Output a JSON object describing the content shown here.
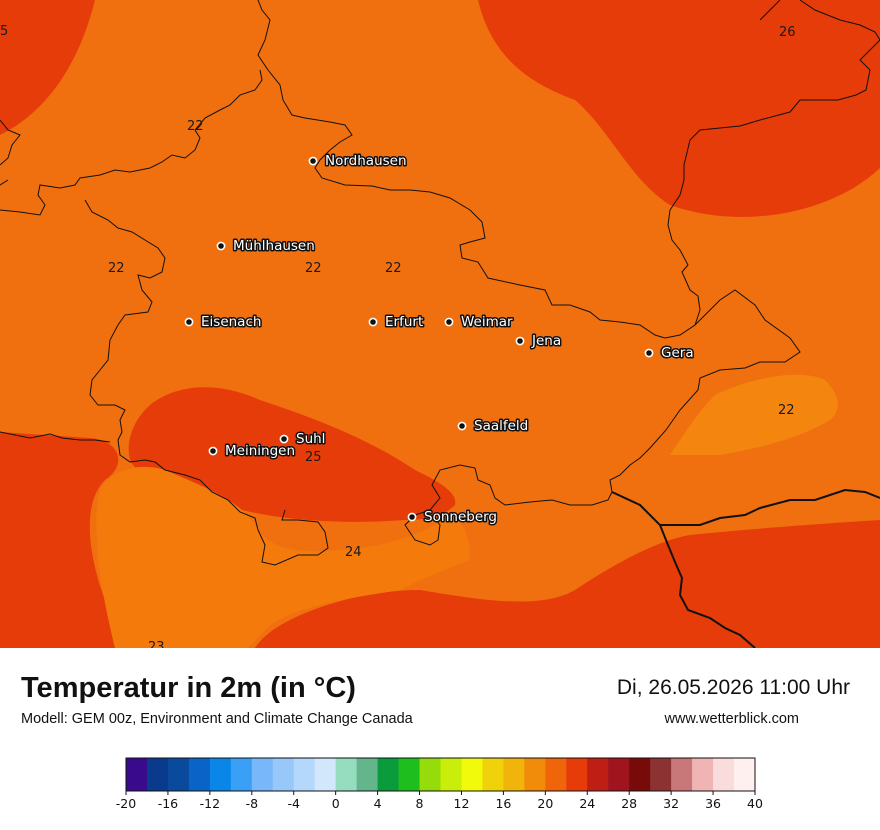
{
  "map": {
    "colors": {
      "t20_22": "#f07010",
      "t22_24_light": "#f4850f",
      "t24_26": "#e63c0a",
      "border": "#111111"
    },
    "cities": [
      {
        "name": "Nordhausen"
      },
      {
        "name": "Mühlhausen"
      },
      {
        "name": "Eisenach"
      },
      {
        "name": "Erfurt"
      },
      {
        "name": "Weimar"
      },
      {
        "name": "Jena"
      },
      {
        "name": "Gera"
      },
      {
        "name": "Saalfeld"
      },
      {
        "name": "Suhl"
      },
      {
        "name": "Meiningen"
      },
      {
        "name": "Sonneberg"
      }
    ],
    "isoline_labels": [
      "5",
      "26",
      "22",
      "22",
      "22",
      "22",
      "22",
      "25",
      "24",
      "23"
    ]
  },
  "footer": {
    "title": "Temperatur in 2m (in °C)",
    "subtitle": "Modell: GEM 00z, Environment and Climate Change Canada",
    "date": "Di, 26.05.2026 11:00 Uhr",
    "site": "www.wetterblick.com"
  },
  "legend": {
    "min": -20,
    "max": 40,
    "step": 2,
    "tick_labels": [
      "-20",
      "-16",
      "-12",
      "-8",
      "-4",
      "0",
      "4",
      "8",
      "12",
      "16",
      "20",
      "24",
      "28",
      "32",
      "36",
      "40"
    ],
    "colors": [
      "#3a0a8c",
      "#0a3a8c",
      "#0a4a9c",
      "#0a64c8",
      "#0a86e8",
      "#3aa0f5",
      "#78b8fa",
      "#98c8fa",
      "#b4d8fc",
      "#d2e6fc",
      "#96dcbe",
      "#64b48c",
      "#0a9c3c",
      "#1ebe1e",
      "#96dc0a",
      "#c8ee0a",
      "#f0fa0a",
      "#f0d20a",
      "#f0b40a",
      "#f08c0a",
      "#f0640a",
      "#e63c0a",
      "#be1e14",
      "#a0141e",
      "#780a0a",
      "#8c3232",
      "#c87878",
      "#f0b4b4",
      "#fadcdc",
      "#fff0f0"
    ]
  }
}
